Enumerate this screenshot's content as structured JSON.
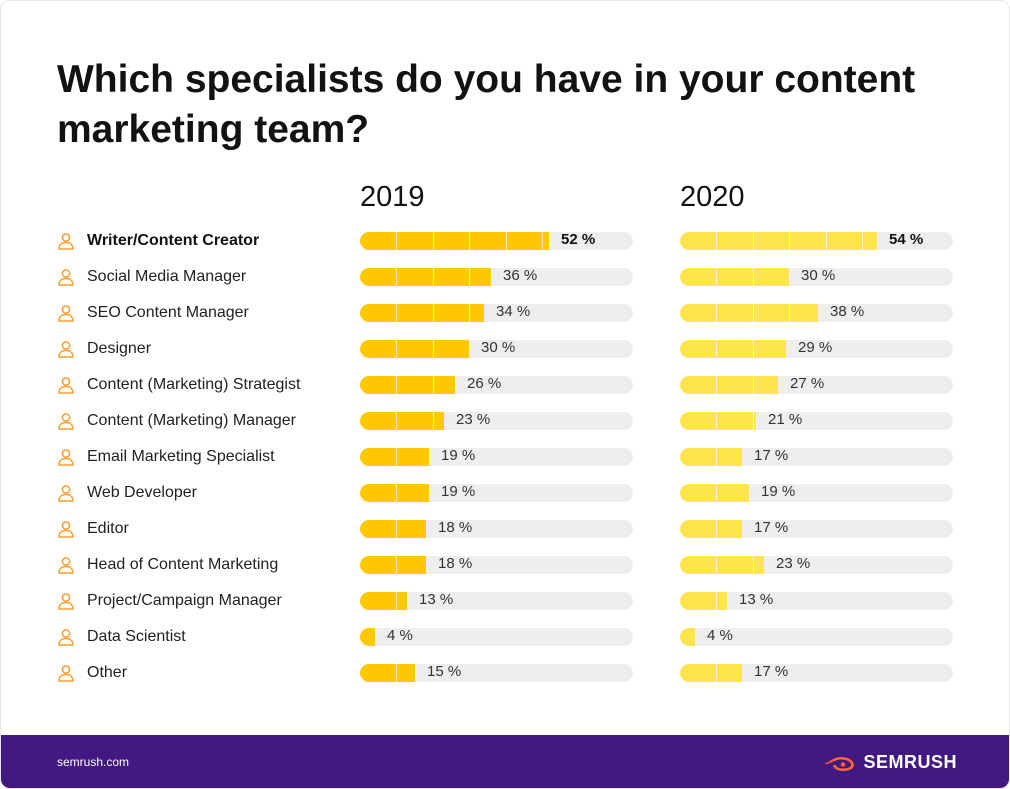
{
  "header": {
    "title": "Which specialists do you have in your content marketing team?"
  },
  "chart_data": {
    "type": "bar",
    "orientation": "horizontal",
    "title": "Which specialists do you have in your content marketing team?",
    "categories": [
      "Writer/Content Creator",
      "Social Media Manager",
      "SEO Content Manager",
      "Designer",
      "Content (Marketing) Strategist",
      "Content (Marketing) Manager",
      "Email Marketing Specialist",
      "Web Developer",
      "Editor",
      "Head of Content Marketing",
      "Project/Campaign Manager",
      "Data Scientist",
      "Other"
    ],
    "series": [
      {
        "name": "2019",
        "color": "#ffc800",
        "values": [
          52,
          36,
          34,
          30,
          26,
          23,
          19,
          19,
          18,
          18,
          13,
          4,
          15
        ]
      },
      {
        "name": "2020",
        "color": "#ffe54d",
        "values": [
          54,
          30,
          38,
          29,
          27,
          21,
          17,
          19,
          17,
          23,
          13,
          4,
          17
        ]
      }
    ],
    "value_suffix": " %",
    "xlim": [
      0,
      75
    ],
    "highlighted_category": "Writer/Content Creator",
    "track_color": "#eeeeee",
    "icon": "person-icon",
    "icon_color": "#ff9e2c"
  },
  "footer": {
    "link": "semrush.com",
    "logo_text": "SEMRUSH",
    "logo_icon": "semrush-fire-icon",
    "background": "#421983",
    "logo_color": "#ff642d"
  }
}
